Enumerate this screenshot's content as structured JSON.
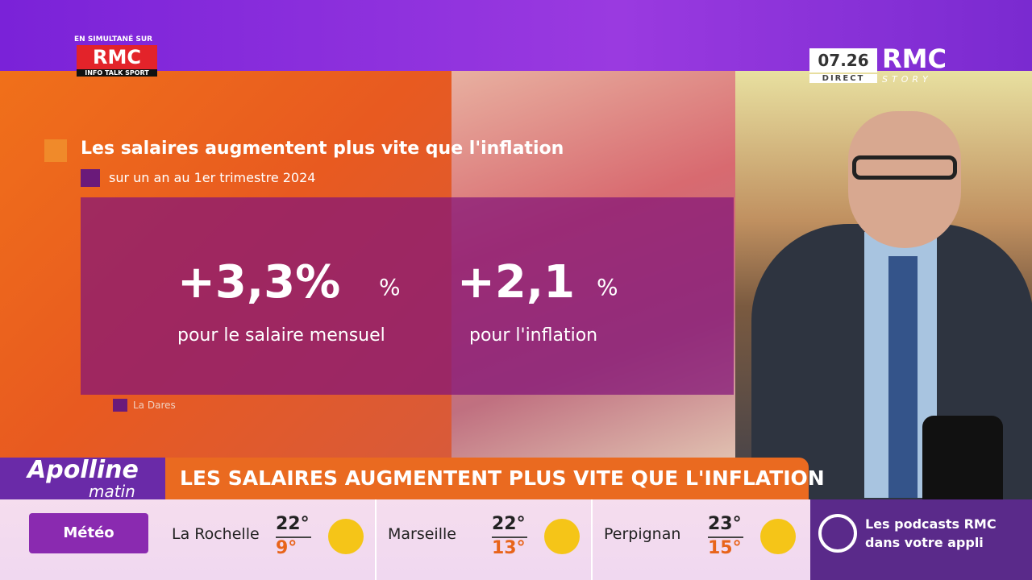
{
  "broadcast": {
    "simulcast": {
      "label": "EN SIMULTANÉ SUR",
      "brand": "RMC",
      "tagline": "INFO TALK SPORT"
    },
    "clock": {
      "time": "07.26",
      "status": "DIRECT",
      "brand": "RMC",
      "channel": "STORY"
    }
  },
  "graphic": {
    "title": "Les salaires augmentent plus vite que l'inflation",
    "subtitle": "sur un an au 1er trimestre 2024",
    "stats": [
      {
        "value": "+3,3%",
        "unit": "%",
        "label": "pour le salaire mensuel"
      },
      {
        "value": "+2,1",
        "unit": "%",
        "label": "pour l'inflation"
      }
    ],
    "source": "La Dares"
  },
  "show": {
    "name": "Apolline",
    "subname": "matin"
  },
  "headline": "LES SALAIRES AUGMENTENT PLUS VITE QUE L'INFLATION",
  "weather": {
    "label": "Météo",
    "cities": [
      {
        "name": "La Rochelle",
        "high": "22°",
        "low": "9°"
      },
      {
        "name": "Marseille",
        "high": "22°",
        "low": "13°"
      },
      {
        "name": "Perpignan",
        "high": "23°",
        "low": "15°"
      }
    ]
  },
  "promo": {
    "line1": "Les podcasts RMC",
    "line2": "dans votre appli"
  }
}
